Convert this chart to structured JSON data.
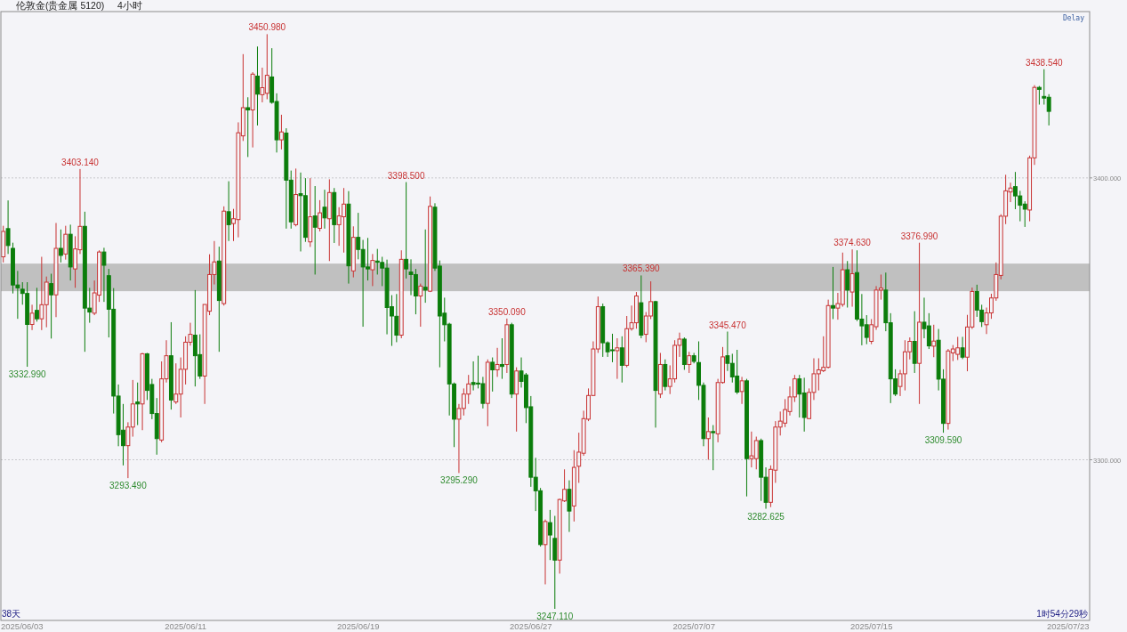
{
  "chart_data": {
    "type": "candlestick",
    "title": "伦敦金(贵金属 5120)",
    "subtitle": "4小时",
    "categories": [
      null,
      null,
      null,
      null,
      "2025/06/03",
      null,
      null,
      null,
      null,
      null,
      null,
      null,
      null,
      null,
      null,
      null,
      null,
      null,
      null,
      null,
      null,
      null,
      null,
      null,
      null,
      null,
      null,
      null,
      null,
      null,
      null,
      null,
      null,
      null,
      null,
      null,
      null,
      null,
      "2025/06/11",
      null,
      null,
      null,
      null,
      null,
      null,
      null,
      null,
      null,
      null,
      null,
      null,
      null,
      null,
      null,
      null,
      null,
      null,
      null,
      null,
      null,
      null,
      null,
      null,
      null,
      null,
      null,
      null,
      null,
      null,
      null,
      null,
      null,
      null,
      null,
      "2025/06/19",
      null,
      null,
      null,
      null,
      null,
      null,
      null,
      null,
      null,
      null,
      null,
      null,
      null,
      null,
      null,
      null,
      null,
      null,
      null,
      null,
      null,
      null,
      null,
      null,
      null,
      null,
      null,
      null,
      null,
      null,
      null,
      null,
      null,
      null,
      null,
      "2025/06/27",
      null,
      null,
      null,
      null,
      null,
      null,
      null,
      null,
      null,
      null,
      null,
      null,
      null,
      null,
      null,
      null,
      null,
      null,
      null,
      null,
      null,
      null,
      null,
      null,
      null,
      null,
      null,
      null,
      null,
      null,
      null,
      null,
      null,
      "2025/07/07",
      null,
      null,
      null,
      null,
      null,
      null,
      null,
      null,
      null,
      null,
      null,
      null,
      null,
      null,
      null,
      null,
      null,
      null,
      null,
      null,
      null,
      null,
      null,
      null,
      null,
      null,
      null,
      null,
      null,
      null,
      null,
      null,
      null,
      null,
      null,
      null,
      "2025/07/15",
      null,
      null,
      null,
      null,
      null,
      null,
      null,
      null,
      null,
      null,
      null,
      null,
      null,
      null,
      null,
      null,
      null,
      null,
      null,
      null,
      null,
      null,
      null,
      null,
      null,
      null,
      null,
      null,
      null,
      null,
      null,
      null,
      null,
      null,
      null,
      null,
      null,
      null,
      null,
      null,
      "2025/07/23",
      null,
      null,
      null,
      null
    ],
    "ohlc": [
      [
        3372,
        3383,
        3370,
        3381
      ],
      [
        3382,
        3392,
        3373,
        3376
      ],
      [
        3375,
        3377,
        3359,
        3362
      ],
      [
        3362,
        3367,
        3350,
        3361
      ],
      [
        3360.5,
        3363,
        3355,
        3359
      ],
      [
        3359,
        3363,
        3332.99,
        3348
      ],
      [
        3348,
        3355,
        3346,
        3352
      ],
      [
        3353,
        3361,
        3349,
        3350
      ],
      [
        3350,
        3372,
        3346,
        3355
      ],
      [
        3355,
        3365,
        3347,
        3363
      ],
      [
        3362.5,
        3366,
        3343,
        3358.5
      ],
      [
        3358.5,
        3384,
        3350.6,
        3375
      ],
      [
        3375,
        3381.7,
        3370,
        3372.5
      ],
      [
        3373,
        3383,
        3371,
        3380
      ],
      [
        3380,
        3383.4,
        3363.6,
        3368.4
      ],
      [
        3367.7,
        3379.3,
        3361,
        3374.8
      ],
      [
        3374.5,
        3403.14,
        3373,
        3382.8
      ],
      [
        3382.8,
        3388,
        3338.3,
        3353.8
      ],
      [
        3353.8,
        3361,
        3348.6,
        3352.4
      ],
      [
        3352,
        3363.6,
        3351.3,
        3359.2
      ],
      [
        3358.4,
        3374.3,
        3356,
        3373.7
      ],
      [
        3373.7,
        3375.2,
        3356,
        3369
      ],
      [
        3365.3,
        3367.7,
        3343.4,
        3353.4
      ],
      [
        3353.4,
        3360.9,
        3316.4,
        3322.6
      ],
      [
        3322.6,
        3326.7,
        3304.8,
        3308.9
      ],
      [
        3310.5,
        3319.8,
        3298,
        3305
      ],
      [
        3305,
        3313.3,
        3293.49,
        3311.6
      ],
      [
        3311.6,
        3328.3,
        3308.2,
        3319.8
      ],
      [
        3320.5,
        3327.4,
        3312.3,
        3319.8
      ],
      [
        3319.8,
        3337.9,
        3310.5,
        3337.6
      ],
      [
        3337.6,
        3337.9,
        3321.2,
        3324.6
      ],
      [
        3326.7,
        3328.7,
        3314.4,
        3316.4
      ],
      [
        3316.4,
        3321.9,
        3301.8,
        3307.5
      ],
      [
        3307,
        3334.9,
        3306.2,
        3328.7
      ],
      [
        3328.7,
        3342.4,
        3327.4,
        3336.9
      ],
      [
        3336.9,
        3348.8,
        3317.8,
        3321.2
      ],
      [
        3320.5,
        3334.2,
        3319.8,
        3323.3
      ],
      [
        3323.3,
        3336.3,
        3315,
        3332.1
      ],
      [
        3332.1,
        3343.8,
        3326.7,
        3341.7
      ],
      [
        3341.7,
        3348.6,
        3340.5,
        3344.5
      ],
      [
        3344.2,
        3360.2,
        3326,
        3336.9
      ],
      [
        3337.3,
        3344.5,
        3328.7,
        3329.7
      ],
      [
        3329.7,
        3355.1,
        3319.8,
        3355.1
      ],
      [
        3352.7,
        3372.9,
        3351.3,
        3365.7
      ],
      [
        3365.7,
        3377.6,
        3362.2,
        3370.2
      ],
      [
        3370.5,
        3375.6,
        3338.3,
        3356.5
      ],
      [
        3355.4,
        3389.9,
        3354.7,
        3388.2
      ],
      [
        3388,
        3398.8,
        3377.6,
        3383.4
      ],
      [
        3383.8,
        3389,
        3377.6,
        3385.5
      ],
      [
        3385.2,
        3419.7,
        3378.9,
        3416
      ],
      [
        3414.9,
        3443.9,
        3413.1,
        3424.9
      ],
      [
        3424.9,
        3428.6,
        3407.4,
        3424.1
      ],
      [
        3424.1,
        3437.5,
        3410.8,
        3436.8
      ],
      [
        3436.1,
        3446.6,
        3418.6,
        3429.7
      ],
      [
        3429.5,
        3439.1,
        3426.8,
        3432
      ],
      [
        3430,
        3450.98,
        3427.9,
        3436.4
      ],
      [
        3435.8,
        3446,
        3426.3,
        3426.8
      ],
      [
        3427.1,
        3430,
        3409,
        3413.5
      ],
      [
        3413.5,
        3422.4,
        3410.1,
        3416.3
      ],
      [
        3415.9,
        3417.6,
        3382,
        3399.2
      ],
      [
        3399.2,
        3402.6,
        3382,
        3384.4
      ],
      [
        3383.4,
        3403.3,
        3382.8,
        3394.1
      ],
      [
        3394.4,
        3401.9,
        3373.9,
        3393.7
      ],
      [
        3393.7,
        3399.9,
        3377.3,
        3378.9
      ],
      [
        3377.3,
        3399.9,
        3375.5,
        3386.2
      ],
      [
        3386.5,
        3397.1,
        3365.7,
        3382.5
      ],
      [
        3382.1,
        3392.1,
        3381,
        3387.6
      ],
      [
        3389.6,
        3395.8,
        3382,
        3385.8
      ],
      [
        3385.5,
        3399.5,
        3370.5,
        3394.8
      ],
      [
        3394.8,
        3396.4,
        3376.9,
        3383.4
      ],
      [
        3383.4,
        3389.6,
        3375.9,
        3386.5
      ],
      [
        3386.2,
        3396.4,
        3373.5,
        3390.7
      ],
      [
        3390.7,
        3395.3,
        3362.5,
        3368.8
      ],
      [
        3367,
        3382.8,
        3364.7,
        3378.9
      ],
      [
        3378.9,
        3387.6,
        3371.1,
        3374.6
      ],
      [
        3374.6,
        3378,
        3347.2,
        3368.4
      ],
      [
        3368.4,
        3378.7,
        3363.6,
        3367.7
      ],
      [
        3367.4,
        3373,
        3361.6,
        3370.7
      ],
      [
        3370.5,
        3374.8,
        3365.7,
        3370
      ],
      [
        3370,
        3372,
        3361.6,
        3368
      ],
      [
        3368,
        3371,
        3344.5,
        3354
      ],
      [
        3354.3,
        3358.4,
        3340.4,
        3351
      ],
      [
        3350.9,
        3358.8,
        3341.7,
        3344.2
      ],
      [
        3344.2,
        3374.3,
        3343.1,
        3371.1
      ],
      [
        3371.1,
        3398.5,
        3364.3,
        3367.7
      ],
      [
        3366.6,
        3371.1,
        3358.4,
        3365.7
      ],
      [
        3365.7,
        3367.7,
        3351.6,
        3358.1
      ],
      [
        3358.1,
        3362.5,
        3347.2,
        3361.6
      ],
      [
        3361.2,
        3381.7,
        3355.7,
        3360.2
      ],
      [
        3359.8,
        3393.4,
        3359.5,
        3389.9
      ],
      [
        3389.6,
        3391,
        3367,
        3368
      ],
      [
        3368.7,
        3370.7,
        3332.8,
        3351
      ],
      [
        3352,
        3357.5,
        3342,
        3347.9
      ],
      [
        3348.1,
        3348.6,
        3315.7,
        3326.9
      ],
      [
        3326.9,
        3327.4,
        3304.5,
        3314.4
      ],
      [
        3314.4,
        3319.8,
        3295.29,
        3318.2
      ],
      [
        3318.2,
        3325.3,
        3315.7,
        3323.3
      ],
      [
        3323.3,
        3330.1,
        3319.8,
        3326.9
      ],
      [
        3327.4,
        3334.9,
        3324.6,
        3326.7
      ],
      [
        3327.2,
        3336.9,
        3325.3,
        3326.9
      ],
      [
        3327,
        3329.4,
        3318.2,
        3320
      ],
      [
        3320,
        3335.6,
        3311.9,
        3334.6
      ],
      [
        3334.6,
        3336.3,
        3324.2,
        3331.9
      ],
      [
        3331.9,
        3339.7,
        3329.4,
        3333.8
      ],
      [
        3333.8,
        3343.1,
        3328.7,
        3333.1
      ],
      [
        3333.8,
        3350.09,
        3330.8,
        3347.9
      ],
      [
        3347.9,
        3348.6,
        3321.9,
        3323.3
      ],
      [
        3323.3,
        3332.8,
        3310,
        3331.5
      ],
      [
        3331.5,
        3336.3,
        3325.6,
        3327.8
      ],
      [
        3330.1,
        3330.8,
        3313,
        3318.5
      ],
      [
        3318.8,
        3322.6,
        3290.4,
        3293.8
      ],
      [
        3293.8,
        3300.7,
        3281.8,
        3289
      ],
      [
        3289,
        3290,
        3269.2,
        3269.9
      ],
      [
        3269.9,
        3278.8,
        3255.8,
        3278.1
      ],
      [
        3277.7,
        3282.2,
        3264.4,
        3273.3
      ],
      [
        3272.1,
        3280.1,
        3247.11,
        3264.4
      ],
      [
        3264.4,
        3286.2,
        3259.6,
        3285.9
      ],
      [
        3285.4,
        3296.6,
        3285,
        3289.5
      ],
      [
        3289.5,
        3292.7,
        3274.4,
        3281.8
      ],
      [
        3283.6,
        3303.4,
        3278.1,
        3297.3
      ],
      [
        3297.7,
        3309.6,
        3291.8,
        3302.7
      ],
      [
        3302.3,
        3317.4,
        3301.4,
        3314.6
      ],
      [
        3314.4,
        3325.3,
        3313.7,
        3322.8
      ],
      [
        3322.8,
        3342,
        3322.6,
        3339.3
      ],
      [
        3339.3,
        3357.9,
        3337.9,
        3354.3
      ],
      [
        3354.3,
        3355.4,
        3336.5,
        3341.5
      ],
      [
        3341.5,
        3342,
        3336.5,
        3338.3
      ],
      [
        3339,
        3344.7,
        3334.6,
        3338.7
      ],
      [
        3338.7,
        3343.1,
        3328.7,
        3339.7
      ],
      [
        3339.7,
        3343.8,
        3327.4,
        3333.5
      ],
      [
        3333.5,
        3351,
        3332.8,
        3346.5
      ],
      [
        3346.5,
        3354.7,
        3345.8,
        3348.6
      ],
      [
        3348.6,
        3359.5,
        3346.5,
        3358.1
      ],
      [
        3355.7,
        3365.39,
        3343.1,
        3344.2
      ],
      [
        3344.5,
        3352.4,
        3341.7,
        3351
      ],
      [
        3351,
        3363.3,
        3349.9,
        3356.1
      ],
      [
        3356.1,
        3356.4,
        3311.4,
        3324.6
      ],
      [
        3323.3,
        3337.9,
        3321.9,
        3333.8
      ],
      [
        3333.8,
        3335.6,
        3324.6,
        3326
      ],
      [
        3326,
        3333.5,
        3323.3,
        3328.7
      ],
      [
        3328.7,
        3342.4,
        3327.4,
        3340.6
      ],
      [
        3340.6,
        3345.1,
        3336.5,
        3342.8
      ],
      [
        3342.8,
        3343.4,
        3331.9,
        3333.8
      ],
      [
        3333.8,
        3338.3,
        3330.8,
        3336.9
      ],
      [
        3336.9,
        3337.9,
        3334.2,
        3334.9
      ],
      [
        3334.5,
        3342,
        3321.2,
        3326.4
      ],
      [
        3326.4,
        3327.4,
        3304.8,
        3307.5
      ],
      [
        3307.5,
        3315,
        3300,
        3310
      ],
      [
        3310,
        3312.3,
        3296.3,
        3309.6
      ],
      [
        3309.2,
        3328.7,
        3306.2,
        3327.4
      ],
      [
        3327.4,
        3340,
        3327,
        3336.5
      ],
      [
        3336.9,
        3345.47,
        3331.5,
        3334.2
      ],
      [
        3334.2,
        3337.6,
        3327.4,
        3329.4
      ],
      [
        3329.7,
        3339,
        3323.3,
        3324
      ],
      [
        3324.2,
        3329.4,
        3319.8,
        3328
      ],
      [
        3328,
        3328.7,
        3287,
        3300.4
      ],
      [
        3300.4,
        3310,
        3297.3,
        3301.4
      ],
      [
        3300.4,
        3308.2,
        3296.6,
        3306.8
      ],
      [
        3306.8,
        3307.5,
        3285.4,
        3293.8
      ],
      [
        3293.8,
        3297.3,
        3282.625,
        3284.9
      ],
      [
        3284.9,
        3298,
        3283.2,
        3296.6
      ],
      [
        3296.3,
        3313.7,
        3291.8,
        3311.6
      ],
      [
        3311.6,
        3317.1,
        3308.6,
        3313.7
      ],
      [
        3313,
        3321.5,
        3311.6,
        3317.8
      ],
      [
        3317.1,
        3326,
        3315.7,
        3322.3
      ],
      [
        3322.3,
        3330.1,
        3320.5,
        3328.7
      ],
      [
        3328.7,
        3330.1,
        3315,
        3323.3
      ],
      [
        3323.7,
        3329.1,
        3310,
        3315
      ],
      [
        3314.6,
        3325.3,
        3314.4,
        3323.9
      ],
      [
        3323.9,
        3336,
        3321.2,
        3330.5
      ],
      [
        3330.5,
        3336,
        3324.6,
        3331.9
      ],
      [
        3331.6,
        3343.8,
        3331.1,
        3332.8
      ],
      [
        3332.8,
        3356.8,
        3332.4,
        3354.7
      ],
      [
        3354.7,
        3368.4,
        3349.9,
        3353.8
      ],
      [
        3353.8,
        3359.2,
        3349.7,
        3355.4
      ],
      [
        3355.1,
        3373.5,
        3354.3,
        3367.4
      ],
      [
        3367.4,
        3370.5,
        3354,
        3360.2
      ],
      [
        3359.5,
        3374.63,
        3354.3,
        3366
      ],
      [
        3366.4,
        3374.3,
        3349.2,
        3349.9
      ],
      [
        3349.9,
        3358.8,
        3340.6,
        3347.5
      ],
      [
        3347.9,
        3351.3,
        3341,
        3343.4
      ],
      [
        3342,
        3349.9,
        3341,
        3347.9
      ],
      [
        3347.2,
        3361.6,
        3346.1,
        3360.2
      ],
      [
        3360.2,
        3365.7,
        3356.8,
        3360.9
      ],
      [
        3360.2,
        3366.4,
        3345.6,
        3348.6
      ],
      [
        3348.6,
        3352,
        3320.1,
        3328.7
      ],
      [
        3328.7,
        3332.1,
        3322.6,
        3323.3
      ],
      [
        3326,
        3331.9,
        3322.6,
        3330.5
      ],
      [
        3330.5,
        3342.4,
        3324.6,
        3338.3
      ],
      [
        3338.3,
        3343.4,
        3335.6,
        3342
      ],
      [
        3342,
        3352.7,
        3330.8,
        3334.2
      ],
      [
        3334.2,
        3376.99,
        3319.8,
        3348.8
      ],
      [
        3348.8,
        3357.5,
        3343.1,
        3346.5
      ],
      [
        3347.5,
        3352,
        3339.3,
        3340.4
      ],
      [
        3340.3,
        3347.9,
        3336.4,
        3342.1
      ],
      [
        3342.4,
        3346.4,
        3324.6,
        3328.6
      ],
      [
        3328.6,
        3332.1,
        3309.59,
        3312.9
      ],
      [
        3312.9,
        3339.3,
        3310.7,
        3338.6
      ],
      [
        3337.9,
        3340.7,
        3335,
        3339.3
      ],
      [
        3337.4,
        3343.6,
        3335.4,
        3339.7
      ],
      [
        3339.7,
        3343.6,
        3335.7,
        3336.4
      ],
      [
        3336.4,
        3351.4,
        3331.4,
        3347.1
      ],
      [
        3347.1,
        3361.1,
        3346.4,
        3359.7
      ],
      [
        3359.7,
        3362.1,
        3350.7,
        3353.1
      ],
      [
        3353.1,
        3355,
        3347.1,
        3349
      ],
      [
        3347.9,
        3354,
        3344.6,
        3352.1
      ],
      [
        3352.1,
        3358.9,
        3350,
        3357.4
      ],
      [
        3357.4,
        3370,
        3356.4,
        3365.7
      ],
      [
        3365.4,
        3387.1,
        3364,
        3386.4
      ],
      [
        3386.4,
        3401.1,
        3383.6,
        3395.4
      ],
      [
        3395,
        3398.3,
        3391.4,
        3396.4
      ],
      [
        3396.9,
        3402.1,
        3388.9,
        3393.6
      ],
      [
        3393.6,
        3395.4,
        3384.6,
        3390.3
      ],
      [
        3390.7,
        3391.7,
        3382.6,
        3388.9
      ],
      [
        3388.6,
        3407.9,
        3384.6,
        3407.1
      ],
      [
        3407.1,
        3432.9,
        3404.6,
        3432.1
      ],
      [
        3432.1,
        3432.6,
        3426,
        3431.4
      ],
      [
        3428.9,
        3438.54,
        3426,
        3428.3
      ],
      [
        3428.6,
        3429.7,
        3418.6,
        3423.6
      ],
      null,
      null,
      null,
      null,
      null,
      null,
      null,
      null
    ],
    "ylim": [
      3243,
      3459
    ],
    "yticks": [
      {
        "value": 3300,
        "label": "3300.000"
      },
      {
        "value": 3400,
        "label": "3400.000"
      }
    ],
    "grid": "y",
    "bands": [
      {
        "axis": "y",
        "from": 3359.8,
        "to": 3369.6,
        "color": "#c0c0c0"
      }
    ],
    "annotations": [
      {
        "text": "3403.140",
        "y": 3403.14
      },
      {
        "text": "3332.990",
        "y": 3332.99
      },
      {
        "text": "3293.490",
        "y": 3293.49
      },
      {
        "text": "3450.980",
        "y": 3450.98
      },
      {
        "text": "3398.500",
        "y": 3398.5
      },
      {
        "text": "3295.290",
        "y": 3295.29
      },
      {
        "text": "3350.090",
        "y": 3350.09
      },
      {
        "text": "3247.110",
        "y": 3247.11
      },
      {
        "text": "3365.390",
        "y": 3365.39
      },
      {
        "text": "3345.470",
        "y": 3345.47
      },
      {
        "text": "3282.625",
        "y": 3282.625
      },
      {
        "text": "3374.630",
        "y": 3374.63
      },
      {
        "text": "3376.990",
        "y": 3376.99
      },
      {
        "text": "3309.590",
        "y": 3309.59
      },
      {
        "text": "3438.540",
        "y": 3438.54
      },
      "38天",
      "1时54分29秒",
      "Delay"
    ]
  }
}
